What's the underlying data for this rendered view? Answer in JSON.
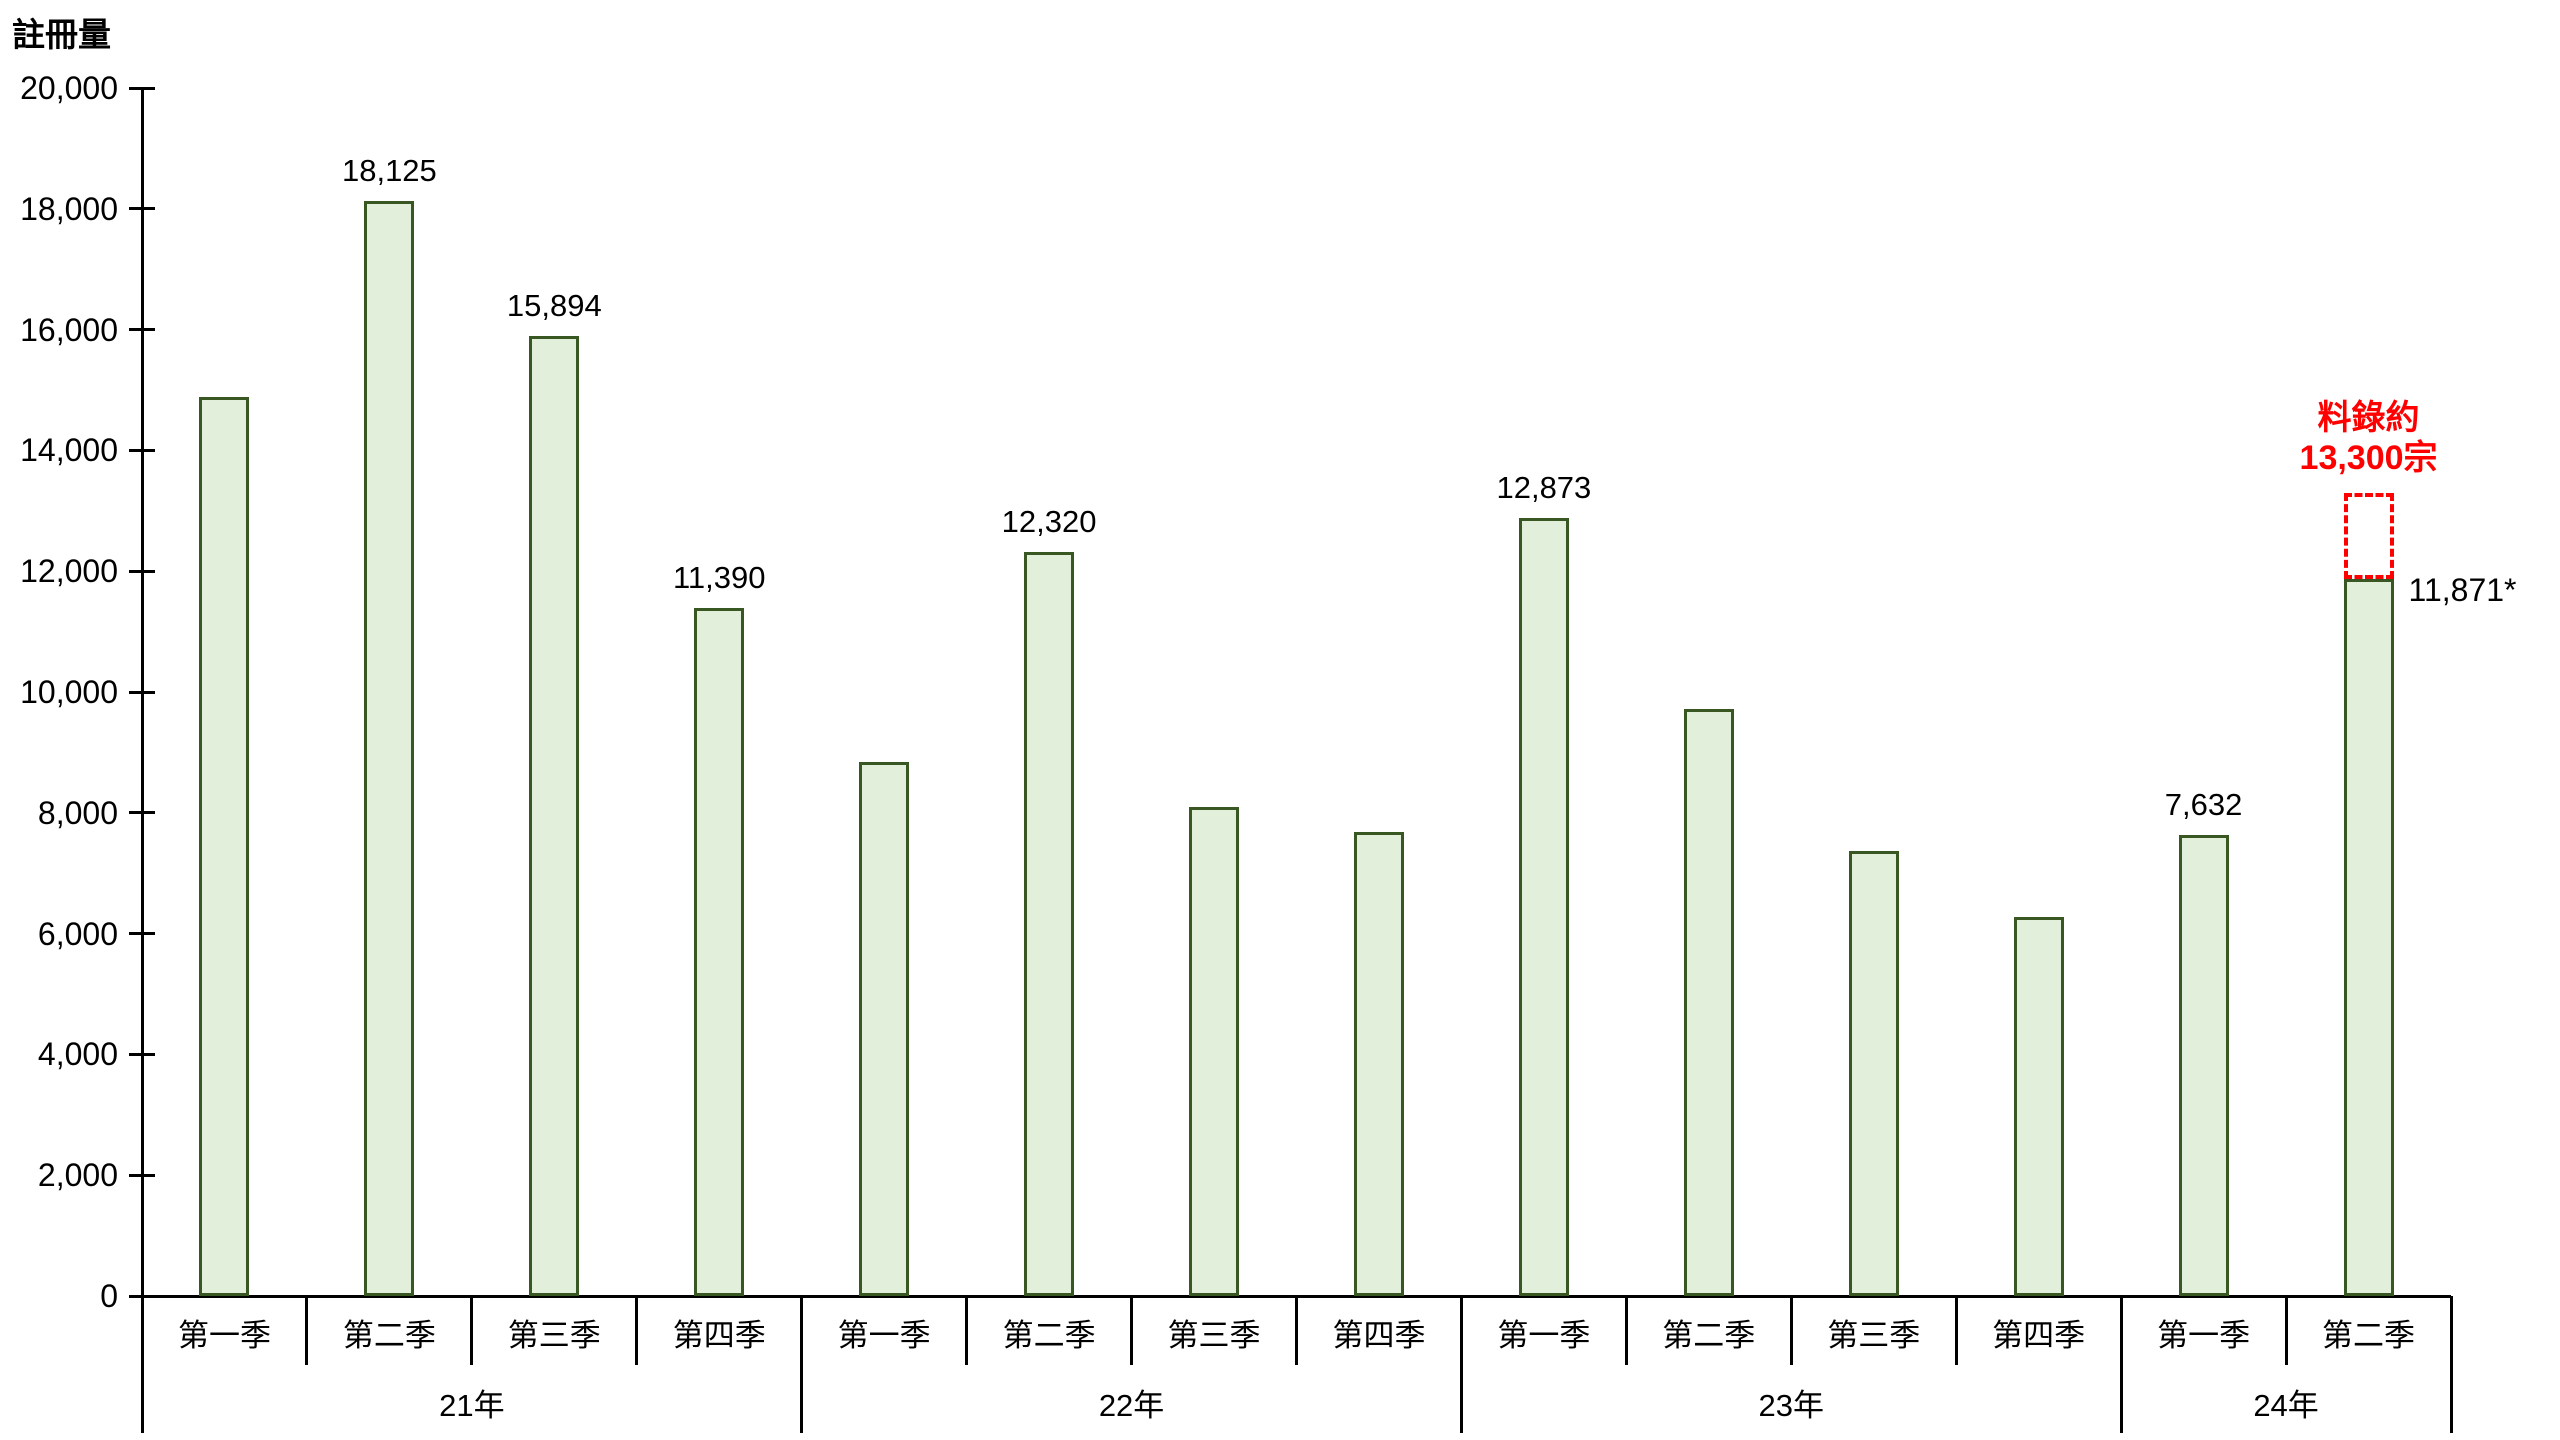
{
  "colors": {
    "bar_fill": "#E2EFDA",
    "bar_border": "#385723",
    "axis": "#000000",
    "text": "#000000",
    "forecast_red": "#FF0000"
  },
  "chart_data": {
    "type": "bar",
    "title": "註冊量",
    "ylabel": "註冊量",
    "xlabel": "",
    "ylim": [
      0,
      20000
    ],
    "y_tick_step": 2000,
    "y_tick_labels": [
      "0",
      "2,000",
      "4,000",
      "6,000",
      "8,000",
      "10,000",
      "12,000",
      "14,000",
      "16,000",
      "18,000",
      "20,000"
    ],
    "grid": false,
    "legend_position": "none",
    "groups": [
      {
        "year": "21年",
        "quarters": [
          {
            "label": "第一季",
            "value": 14890,
            "data_label": ""
          },
          {
            "label": "第二季",
            "value": 18125,
            "data_label": "18,125"
          },
          {
            "label": "第三季",
            "value": 15894,
            "data_label": "15,894"
          },
          {
            "label": "第四季",
            "value": 11390,
            "data_label": "11,390"
          }
        ]
      },
      {
        "year": "22年",
        "quarters": [
          {
            "label": "第一季",
            "value": 8840,
            "data_label": ""
          },
          {
            "label": "第二季",
            "value": 12320,
            "data_label": "12,320"
          },
          {
            "label": "第三季",
            "value": 8100,
            "data_label": ""
          },
          {
            "label": "第四季",
            "value": 7690,
            "data_label": ""
          }
        ]
      },
      {
        "year": "23年",
        "quarters": [
          {
            "label": "第一季",
            "value": 12873,
            "data_label": "12,873"
          },
          {
            "label": "第二季",
            "value": 9720,
            "data_label": ""
          },
          {
            "label": "第三季",
            "value": 7360,
            "data_label": ""
          },
          {
            "label": "第四季",
            "value": 6280,
            "data_label": ""
          }
        ]
      },
      {
        "year": "24年",
        "quarters": [
          {
            "label": "第一季",
            "value": 7632,
            "data_label": "7,632"
          },
          {
            "label": "第二季",
            "value": 11871,
            "data_label": ""
          }
        ]
      }
    ],
    "forecast": {
      "target_year": "24年",
      "target_quarter": "第二季",
      "annotation_lines": [
        "料錄約",
        "13,300宗"
      ],
      "forecast_value": 13300,
      "actual_value": 11871,
      "side_label": "11,871*"
    }
  }
}
